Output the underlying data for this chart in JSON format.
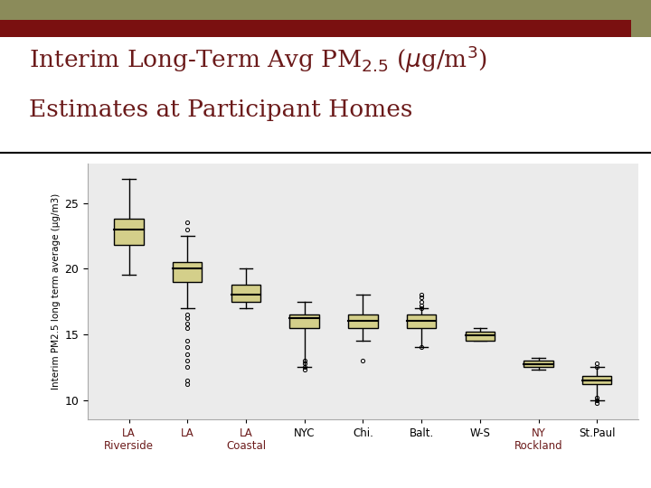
{
  "title_color": "#6b1a1a",
  "ylabel": "Interim PM2.5 long term average (μg/m3)",
  "bg_color": "#ebebeb",
  "slide_top_color1": "#8b8b5a",
  "slide_top_color2": "#7a1010",
  "slide_sq_color": "#8b8b5a",
  "box_facecolor": "#d4cf8a",
  "box_edgecolor": "#000000",
  "whisker_color": "#000000",
  "median_color": "#000000",
  "flier_color": "#000000",
  "categories_top": [
    "LA",
    "LA",
    "LA",
    "NYC",
    "Chi.",
    "Balt.",
    "W-S",
    "NY",
    "St.Paul"
  ],
  "categories_bot": [
    "Riverside",
    "",
    "Coastal",
    "",
    "",
    "",
    "",
    "Rockland",
    ""
  ],
  "cat_colors": [
    "#6b1a1a",
    "#6b1a1a",
    "#6b1a1a",
    "#000000",
    "#000000",
    "#000000",
    "#000000",
    "#6b1a1a",
    "#000000"
  ],
  "boxes": [
    {
      "q1": 21.8,
      "median": 23.0,
      "q3": 23.8,
      "whislo": 19.5,
      "whishi": 26.8,
      "fliers": []
    },
    {
      "q1": 19.0,
      "median": 20.0,
      "q3": 20.5,
      "whislo": 17.0,
      "whishi": 22.5,
      "fliers": [
        23.5,
        23.0,
        16.5,
        16.2,
        15.8,
        15.5,
        14.5,
        14.0,
        13.5,
        13.0,
        12.5,
        11.5,
        11.2
      ]
    },
    {
      "q1": 17.5,
      "median": 18.0,
      "q3": 18.8,
      "whislo": 17.0,
      "whishi": 20.0,
      "fliers": []
    },
    {
      "q1": 15.5,
      "median": 16.2,
      "q3": 16.5,
      "whislo": 12.5,
      "whishi": 17.5,
      "fliers": [
        13.0,
        12.8,
        12.5,
        12.3
      ]
    },
    {
      "q1": 15.5,
      "median": 16.0,
      "q3": 16.5,
      "whislo": 14.5,
      "whishi": 18.0,
      "fliers": [
        13.0
      ]
    },
    {
      "q1": 15.5,
      "median": 16.0,
      "q3": 16.5,
      "whislo": 14.0,
      "whishi": 17.0,
      "fliers": [
        18.0,
        17.8,
        17.5,
        17.2,
        17.0,
        14.0
      ]
    },
    {
      "q1": 14.5,
      "median": 14.9,
      "q3": 15.2,
      "whislo": 14.5,
      "whishi": 15.5,
      "fliers": []
    },
    {
      "q1": 12.5,
      "median": 12.7,
      "q3": 13.0,
      "whislo": 12.3,
      "whishi": 13.2,
      "fliers": []
    },
    {
      "q1": 11.2,
      "median": 11.5,
      "q3": 11.8,
      "whislo": 10.0,
      "whishi": 12.5,
      "fliers": [
        12.8,
        12.5,
        10.2,
        10.0,
        9.8
      ]
    }
  ],
  "ylim": [
    8.5,
    28.0
  ],
  "yticks": [
    10,
    15,
    20,
    25
  ]
}
